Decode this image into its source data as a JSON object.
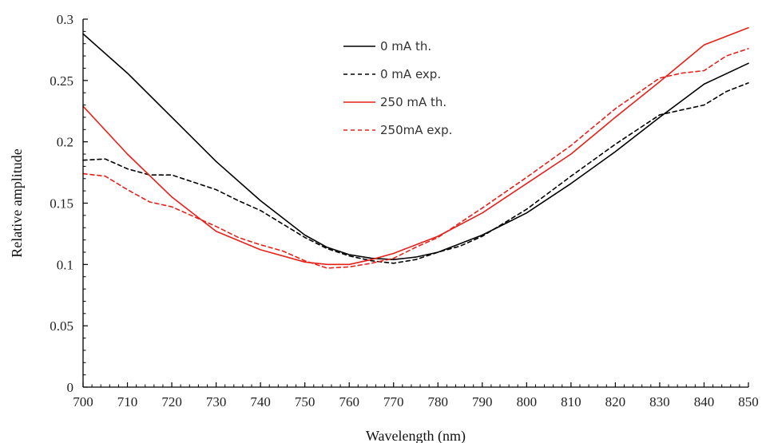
{
  "chart_data": {
    "type": "line",
    "title": "",
    "xlabel": "Wavelength (nm)",
    "ylabel": "Relative amplitude",
    "xlim": [
      700,
      850
    ],
    "ylim": [
      0,
      0.3
    ],
    "xticks": [
      "700",
      "710",
      "720",
      "730",
      "740",
      "750",
      "760",
      "770",
      "780",
      "790",
      "800",
      "810",
      "820",
      "830",
      "840",
      "850"
    ],
    "yticks": [
      "0",
      "0.05",
      "0.1",
      "0.15",
      "0.2",
      "0.25",
      "0.3"
    ],
    "grid": false,
    "legend_position": "top-center",
    "series": [
      {
        "name": "0 mA th.",
        "color": "#000000",
        "dash": "solid",
        "x": [
          700,
          710,
          720,
          730,
          740,
          750,
          755,
          760,
          765,
          770,
          775,
          780,
          790,
          800,
          810,
          820,
          830,
          840,
          850
        ],
        "y": [
          0.288,
          0.256,
          0.22,
          0.184,
          0.152,
          0.124,
          0.114,
          0.108,
          0.105,
          0.104,
          0.106,
          0.11,
          0.124,
          0.142,
          0.166,
          0.192,
          0.22,
          0.247,
          0.264
        ]
      },
      {
        "name": "0 mA exp.",
        "color": "#000000",
        "dash": "dashed",
        "x": [
          700,
          705,
          710,
          715,
          720,
          725,
          730,
          735,
          740,
          745,
          750,
          755,
          760,
          765,
          770,
          775,
          780,
          785,
          790,
          800,
          810,
          820,
          830,
          835,
          840,
          845,
          850
        ],
        "y": [
          0.185,
          0.186,
          0.178,
          0.173,
          0.173,
          0.167,
          0.161,
          0.152,
          0.144,
          0.133,
          0.122,
          0.113,
          0.107,
          0.103,
          0.101,
          0.104,
          0.11,
          0.115,
          0.123,
          0.145,
          0.172,
          0.198,
          0.222,
          0.226,
          0.23,
          0.241,
          0.248
        ]
      },
      {
        "name": "250 mA th.",
        "color": "#e8201a",
        "dash": "solid",
        "x": [
          700,
          710,
          720,
          730,
          740,
          750,
          755,
          760,
          765,
          770,
          775,
          780,
          790,
          800,
          810,
          820,
          830,
          840,
          850
        ],
        "y": [
          0.229,
          0.19,
          0.155,
          0.127,
          0.112,
          0.102,
          0.1,
          0.1,
          0.104,
          0.109,
          0.116,
          0.123,
          0.142,
          0.166,
          0.19,
          0.22,
          0.249,
          0.279,
          0.293
        ]
      },
      {
        "name": "250mA exp.",
        "color": "#e8201a",
        "dash": "dashed",
        "x": [
          700,
          705,
          710,
          715,
          720,
          725,
          730,
          735,
          740,
          745,
          750,
          755,
          760,
          765,
          770,
          775,
          780,
          790,
          800,
          810,
          820,
          830,
          835,
          840,
          845,
          850
        ],
        "y": [
          0.174,
          0.172,
          0.161,
          0.151,
          0.147,
          0.139,
          0.131,
          0.122,
          0.116,
          0.111,
          0.103,
          0.097,
          0.098,
          0.101,
          0.105,
          0.114,
          0.122,
          0.146,
          0.171,
          0.197,
          0.227,
          0.252,
          0.256,
          0.258,
          0.27,
          0.276
        ]
      }
    ]
  }
}
